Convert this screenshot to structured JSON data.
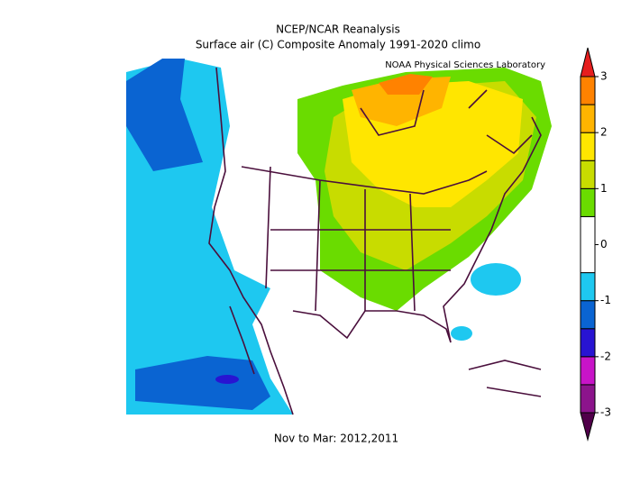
{
  "header": {
    "title": "NCEP/NCAR Reanalysis",
    "subtitle": "Surface air (C) Composite Anomaly 1991-2020 climo",
    "credit": "NOAA Physical Sciences Laboratory"
  },
  "footer": {
    "text": "Nov to Mar: 2012,2011"
  },
  "colorbar": {
    "bounds": [
      -3,
      -2.5,
      -2,
      -1.5,
      -1,
      -0.5,
      0.5,
      1,
      1.5,
      2,
      2.5,
      3
    ],
    "colors": [
      "#8c148c",
      "#c814c8",
      "#2814d2",
      "#0a64d2",
      "#1ec8f0",
      "#ffffff",
      "#6adc00",
      "#c8dc00",
      "#ffe600",
      "#ffb400",
      "#ff8200"
    ],
    "under_color": "#50004a",
    "over_color": "#e61e1e",
    "ticks": [
      -3,
      -2,
      -1,
      0,
      1,
      2,
      3
    ]
  }
}
